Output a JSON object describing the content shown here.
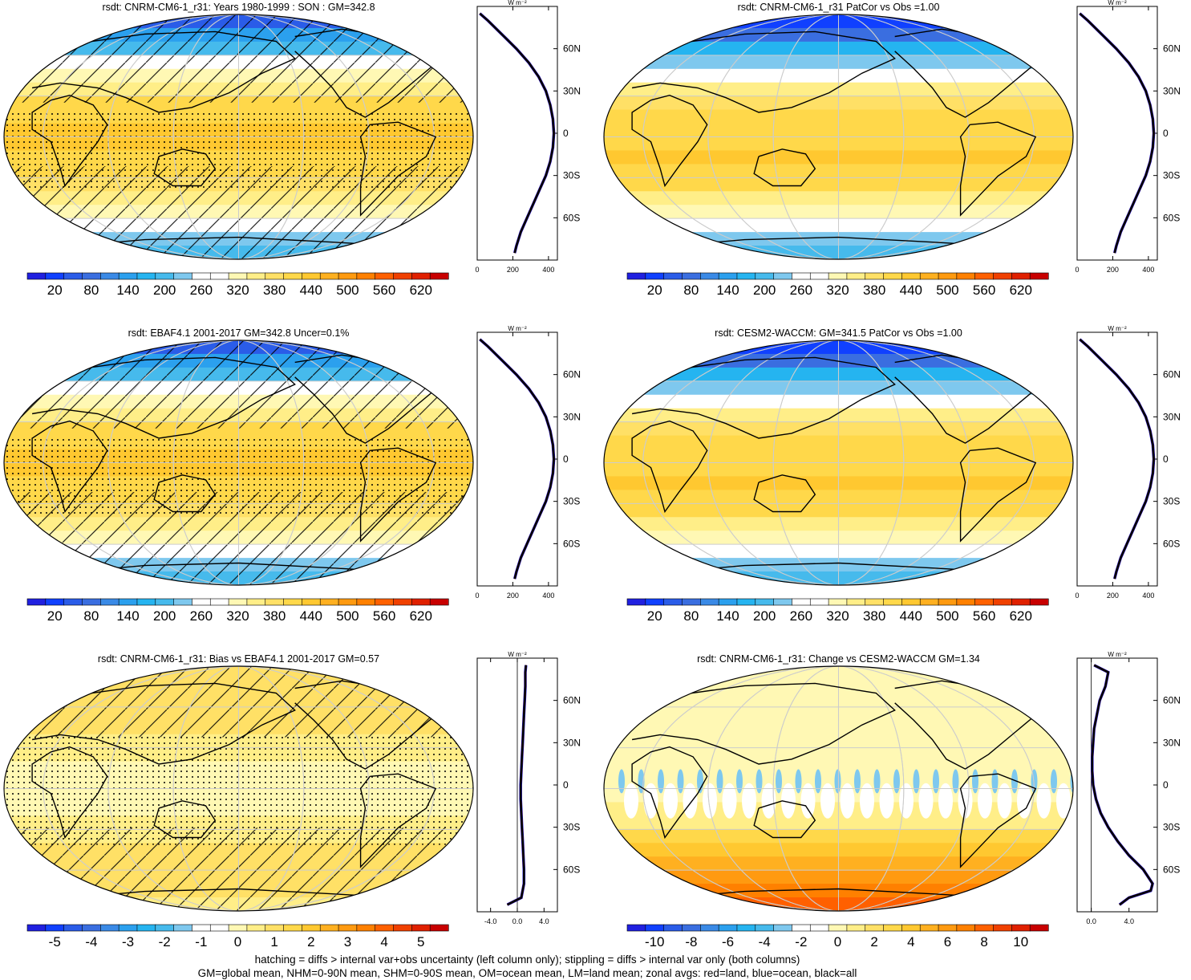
{
  "palette": {
    "abs": [
      "#2020e0",
      "#1040ff",
      "#2a5ce8",
      "#3a6ee0",
      "#3a8ae6",
      "#2ba0ee",
      "#25b4f0",
      "#46baec",
      "#7ec8ee",
      "#ffffff",
      "#ffffff",
      "#fff8b4",
      "#ffee88",
      "#ffe066",
      "#ffd84a",
      "#ffc830",
      "#ffb020",
      "#ff9a10",
      "#ff8000",
      "#ff6000",
      "#f04000",
      "#e02000",
      "#c80000"
    ],
    "diff": [
      "#2020e0",
      "#1040ff",
      "#2a5ce8",
      "#3a6ee0",
      "#3a8ae6",
      "#2ba0ee",
      "#25b4f0",
      "#46baec",
      "#7ec8ee",
      "#ffffff",
      "#ffffff",
      "#fff8b4",
      "#ffee88",
      "#ffe066",
      "#ffd84a",
      "#ffc830",
      "#ffb020",
      "#ff9a10",
      "#ff8000",
      "#ff6000",
      "#f04000",
      "#e02000",
      "#c80000"
    ],
    "outline": "#000000",
    "grid": "#cccccc",
    "profile_all": "#000000",
    "profile_land": "#e01010",
    "profile_ocean": "#1010e0"
  },
  "chart_data": [
    {
      "id": "panel-model",
      "type": "heatmap",
      "title": "rsdt: CNRM-CM6-1_r31: Years 1980-1999 : SON : GM=342.8",
      "scale": "abs",
      "hatching": "hatch+stipple",
      "colorbar_ticks": [
        "20",
        "80",
        "140",
        "200",
        "260",
        "320",
        "380",
        "440",
        "500",
        "560",
        "620"
      ],
      "colorbar_range": [
        0,
        650
      ],
      "lat_bands": [
        90,
        80,
        70,
        60,
        50,
        40,
        30,
        20,
        10,
        0,
        -10,
        -20,
        -30,
        -40,
        -50,
        -60,
        -70,
        -80,
        -90
      ],
      "zonal_values": [
        50,
        110,
        175,
        240,
        300,
        345,
        385,
        410,
        425,
        430,
        425,
        415,
        395,
        370,
        335,
        290,
        245,
        215,
        210
      ],
      "profile": {
        "xlim": [
          0,
          450
        ],
        "xticks": [
          "0",
          "200",
          "400"
        ],
        "unit": "W m⁻²",
        "ylabels": [
          "60N",
          "30N",
          "0",
          "30S",
          "60S"
        ],
        "lat": [
          85,
          80,
          70,
          60,
          50,
          40,
          30,
          20,
          10,
          0,
          -10,
          -20,
          -30,
          -40,
          -50,
          -60,
          -70,
          -80,
          -85
        ],
        "values": [
          15,
          60,
          140,
          220,
          290,
          345,
          385,
          410,
          425,
          430,
          425,
          410,
          385,
          350,
          315,
          280,
          245,
          220,
          210
        ]
      }
    },
    {
      "id": "panel-ref",
      "type": "heatmap",
      "title": "rsdt: CNRM-CM6-1_r31 PatCor vs Obs =1.00",
      "scale": "abs",
      "hatching": "none",
      "colorbar_ticks": [
        "20",
        "80",
        "140",
        "200",
        "260",
        "320",
        "380",
        "440",
        "500",
        "560",
        "620"
      ],
      "colorbar_range": [
        0,
        650
      ],
      "lat_bands": [
        90,
        80,
        70,
        60,
        50,
        40,
        30,
        20,
        10,
        0,
        -10,
        -20,
        -30,
        -40,
        -50,
        -60,
        -70,
        -80,
        -90
      ],
      "zonal_values": [
        20,
        70,
        150,
        215,
        270,
        320,
        375,
        400,
        415,
        420,
        425,
        425,
        410,
        385,
        345,
        300,
        250,
        225,
        220
      ],
      "profile": {
        "xlim": [
          0,
          450
        ],
        "xticks": [
          "0",
          "200",
          "400"
        ],
        "unit": "W m⁻²",
        "ylabels": [
          "60N",
          "30N",
          "0",
          "30S",
          "60S"
        ],
        "lat": [
          85,
          80,
          70,
          60,
          50,
          40,
          30,
          20,
          10,
          0,
          -10,
          -20,
          -30,
          -40,
          -50,
          -60,
          -70,
          -80,
          -85
        ],
        "values": [
          15,
          60,
          140,
          220,
          290,
          345,
          385,
          410,
          425,
          430,
          425,
          410,
          385,
          350,
          315,
          280,
          245,
          220,
          210
        ]
      }
    },
    {
      "id": "panel-obs",
      "type": "heatmap",
      "title": "rsdt: EBAF4.1 2001-2017 GM=342.8 Uncer=0.1%",
      "scale": "abs",
      "hatching": "hatch+stipple",
      "colorbar_ticks": [
        "20",
        "80",
        "140",
        "200",
        "260",
        "320",
        "380",
        "440",
        "500",
        "560",
        "620"
      ],
      "colorbar_range": [
        0,
        650
      ],
      "lat_bands": [
        90,
        80,
        70,
        60,
        50,
        40,
        30,
        20,
        10,
        0,
        -10,
        -20,
        -30,
        -40,
        -50,
        -60,
        -70,
        -80,
        -90
      ],
      "zonal_values": [
        50,
        110,
        175,
        240,
        300,
        345,
        385,
        410,
        425,
        430,
        425,
        415,
        395,
        370,
        335,
        290,
        245,
        215,
        210
      ],
      "profile": {
        "xlim": [
          0,
          450
        ],
        "xticks": [
          "0",
          "200",
          "400"
        ],
        "unit": "W m⁻²",
        "ylabels": [
          "60N",
          "30N",
          "0",
          "30S",
          "60S"
        ],
        "lat": [
          85,
          80,
          70,
          60,
          50,
          40,
          30,
          20,
          10,
          0,
          -10,
          -20,
          -30,
          -40,
          -50,
          -60,
          -70,
          -80,
          -85
        ],
        "values": [
          15,
          60,
          140,
          220,
          290,
          345,
          385,
          410,
          425,
          430,
          425,
          410,
          385,
          350,
          315,
          280,
          245,
          220,
          210
        ]
      }
    },
    {
      "id": "panel-other",
      "type": "heatmap",
      "title": "rsdt: CESM2-WACCM: GM=341.5 PatCor vs Obs =1.00",
      "scale": "abs",
      "hatching": "none",
      "colorbar_ticks": [
        "20",
        "80",
        "140",
        "200",
        "260",
        "320",
        "380",
        "440",
        "500",
        "560",
        "620"
      ],
      "colorbar_range": [
        0,
        650
      ],
      "lat_bands": [
        90,
        80,
        70,
        60,
        50,
        40,
        30,
        20,
        10,
        0,
        -10,
        -20,
        -30,
        -40,
        -50,
        -60,
        -70,
        -80,
        -90
      ],
      "zonal_values": [
        20,
        70,
        150,
        215,
        270,
        320,
        375,
        400,
        415,
        420,
        425,
        425,
        410,
        385,
        345,
        300,
        250,
        225,
        220
      ],
      "profile": {
        "xlim": [
          0,
          450
        ],
        "xticks": [
          "0",
          "200",
          "400"
        ],
        "unit": "W m⁻²",
        "ylabels": [
          "60N",
          "30N",
          "0",
          "30S",
          "60S"
        ],
        "lat": [
          85,
          80,
          70,
          60,
          50,
          40,
          30,
          20,
          10,
          0,
          -10,
          -20,
          -30,
          -40,
          -50,
          -60,
          -70,
          -80,
          -85
        ],
        "values": [
          15,
          60,
          140,
          220,
          290,
          345,
          385,
          410,
          425,
          430,
          425,
          410,
          385,
          350,
          315,
          280,
          245,
          220,
          210
        ]
      }
    },
    {
      "id": "panel-bias",
      "type": "heatmap",
      "title": "rsdt: CNRM-CM6-1_r31: Bias vs EBAF4.1 2001-2017  GM=0.57",
      "scale": "bias",
      "hatching": "hatch-bias",
      "colorbar_ticks": [
        "-5",
        "-4",
        "-3",
        "-2",
        "-1",
        "0",
        "1",
        "2",
        "3",
        "4",
        "5"
      ],
      "colorbar_range": [
        -5.75,
        5.75
      ],
      "lat_bands": [
        90,
        80,
        70,
        60,
        50,
        40,
        30,
        20,
        10,
        0,
        -10,
        -20,
        -30,
        -40,
        -50,
        -60,
        -70,
        -80,
        -90
      ],
      "zonal_values": [
        1.2,
        1.2,
        1.2,
        1.1,
        1.0,
        1.0,
        0.3,
        0.2,
        0.2,
        0.2,
        0.2,
        0.2,
        0.3,
        0.9,
        1.0,
        1.1,
        1.1,
        0.8,
        0.4
      ],
      "profile": {
        "xlim": [
          -6,
          6
        ],
        "xticks": [
          "-4.0",
          "0.0",
          "4.0"
        ],
        "unit": "W m⁻²",
        "ylabels": [
          "60N",
          "30N",
          "0",
          "30S",
          "60S"
        ],
        "lat": [
          85,
          80,
          70,
          60,
          50,
          40,
          30,
          20,
          10,
          0,
          -10,
          -20,
          -30,
          -40,
          -50,
          -60,
          -70,
          -80,
          -85
        ],
        "values": [
          1.3,
          1.2,
          1.2,
          1.1,
          1.0,
          0.9,
          0.8,
          0.7,
          0.6,
          0.5,
          0.5,
          0.6,
          0.7,
          0.8,
          0.9,
          1.0,
          1.0,
          0.6,
          -1.5
        ]
      }
    },
    {
      "id": "panel-change",
      "type": "heatmap",
      "title": "rsdt: CNRM-CM6-1_r31: Change vs CESM2-WACCM GM=1.34",
      "scale": "change",
      "hatching": "none",
      "colorbar_ticks": [
        "-10",
        "-8",
        "-6",
        "-4",
        "-2",
        "0",
        "2",
        "4",
        "6",
        "8",
        "10"
      ],
      "colorbar_range": [
        -11.5,
        11.5
      ],
      "lat_bands": [
        90,
        80,
        70,
        60,
        50,
        40,
        30,
        20,
        10,
        0,
        -10,
        -20,
        -30,
        -40,
        -50,
        -60,
        -70,
        -80,
        -90
      ],
      "zonal_values": [
        0,
        0.8,
        0,
        0,
        0,
        0,
        0,
        0,
        0,
        -0.5,
        0.5,
        1.0,
        2.0,
        3.0,
        4.0,
        5.0,
        6.5,
        7.5,
        7.5
      ],
      "profile": {
        "xlim": [
          -1.5,
          7.0
        ],
        "xticks": [
          "0.0",
          "4.0"
        ],
        "unit": "W m⁻²",
        "ylabels": [
          "60N",
          "30N",
          "0",
          "30S",
          "60S"
        ],
        "lat": [
          85,
          80,
          70,
          60,
          50,
          40,
          30,
          20,
          10,
          0,
          -10,
          -20,
          -30,
          -40,
          -50,
          -60,
          -70,
          -75,
          -80,
          -85
        ],
        "values": [
          0.3,
          1.8,
          1.5,
          0.9,
          0.6,
          0.3,
          0.2,
          0.1,
          0.1,
          0.2,
          0.5,
          1.0,
          1.8,
          2.8,
          4.0,
          5.5,
          6.5,
          6.3,
          4.0,
          3.0
        ]
      }
    }
  ],
  "footer": {
    "line1": "hatching = diffs > internal var+obs uncertainty (left column only); stippling = diffs > internal var only (both columns)",
    "line2": "GM=global mean, NHM=0-90N mean, SHM=0-90S mean, OM=ocean mean, LM=land mean; zonal avgs: red=land, blue=ocean, black=all"
  }
}
